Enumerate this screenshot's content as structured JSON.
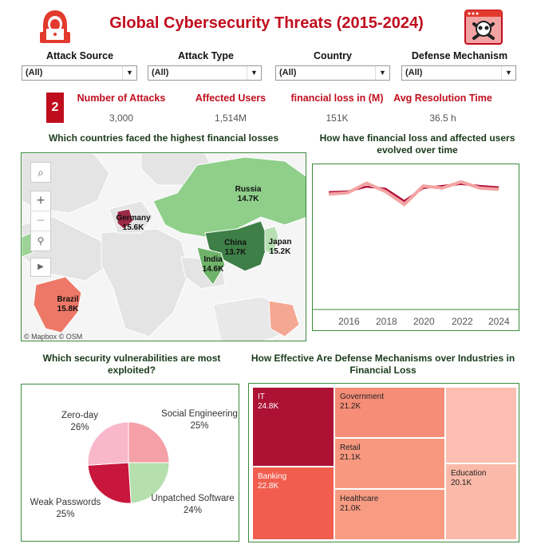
{
  "header": {
    "title": "Global Cybersecurity Threats (2015-2024)"
  },
  "filters": [
    {
      "label": "Attack Source",
      "value": "(All)"
    },
    {
      "label": "Attack Type",
      "value": "(All)"
    },
    {
      "label": "Country",
      "value": "(All)"
    },
    {
      "label": "Defense Mechanism",
      "value": "(All)"
    }
  ],
  "badge": "2",
  "kpis": [
    {
      "label": "Number of Attacks",
      "value": "3,000"
    },
    {
      "label": "Affected Users",
      "value": "1,514M"
    },
    {
      "label": "financial loss in (M)",
      "value": "151K"
    },
    {
      "label": "Avg Resolution Time",
      "value": "36.5 h"
    }
  ],
  "map": {
    "title": "Which countries faced the highest financial losses",
    "credit": "© Mapbox © OSM",
    "labels": [
      {
        "name": "Russia",
        "value": "14.7K"
      },
      {
        "name": "Germany",
        "value": "15.6K"
      },
      {
        "name": "China",
        "value": "13.7K"
      },
      {
        "name": "Japan",
        "value": "15.2K"
      },
      {
        "name": "India",
        "value": "14.6K"
      },
      {
        "name": "Brazil",
        "value": "15.8K"
      }
    ]
  },
  "line": {
    "title": "How have financial loss and affected users evolved over time",
    "ticks": [
      "2016",
      "2018",
      "2020",
      "2022",
      "2024"
    ]
  },
  "pie": {
    "title": "Which security vulnerabilities are most exploited?",
    "slices": [
      {
        "name": "Social Engineering",
        "pct": "25%"
      },
      {
        "name": "Unpatched Software",
        "pct": "24%"
      },
      {
        "name": "Weak Passwords",
        "pct": "25%"
      },
      {
        "name": "Zero-day",
        "pct": "26%"
      }
    ]
  },
  "treemap": {
    "title": "How Effective Are Defense Mechanisms over Industries in Financial Loss",
    "cells": [
      {
        "name": "IT",
        "value": "24.8K"
      },
      {
        "name": "Banking",
        "value": "22.8K"
      },
      {
        "name": "Government",
        "value": "21.2K"
      },
      {
        "name": "Retail",
        "value": "21.1K"
      },
      {
        "name": "Healthcare",
        "value": "21.0K"
      },
      {
        "name": "Education",
        "value": "20.1K"
      },
      {
        "name": "",
        "value": ""
      }
    ]
  },
  "colors": {
    "accent": "#c00d1e",
    "border": "#3d8a3d"
  },
  "chart_data": [
    {
      "type": "line",
      "title": "How have financial loss and affected users evolved over time",
      "x": [
        2015,
        2016,
        2017,
        2018,
        2019,
        2020,
        2021,
        2022,
        2023,
        2024
      ],
      "series": [
        {
          "values": [
            148,
            150,
            164,
            152,
            133,
            160,
            157,
            166,
            157,
            155
          ]
        },
        {
          "values": [
            151,
            152,
            159,
            156,
            138,
            157,
            160,
            163,
            160,
            158
          ]
        }
      ],
      "ylim": [
        0,
        180
      ]
    },
    {
      "type": "pie",
      "title": "Which security vulnerabilities are most exploited?",
      "categories": [
        "Social Engineering",
        "Unpatched Software",
        "Weak Passwords",
        "Zero-day"
      ],
      "values": [
        25,
        24,
        25,
        26
      ]
    },
    {
      "type": "heatmap",
      "title": "How Effective Are Defense Mechanisms over Industries in Financial Loss",
      "categories": [
        "IT",
        "Banking",
        "Government",
        "Retail",
        "Healthcare",
        "Education"
      ],
      "values": [
        24.8,
        22.8,
        21.2,
        21.1,
        21.0,
        20.1
      ]
    }
  ]
}
